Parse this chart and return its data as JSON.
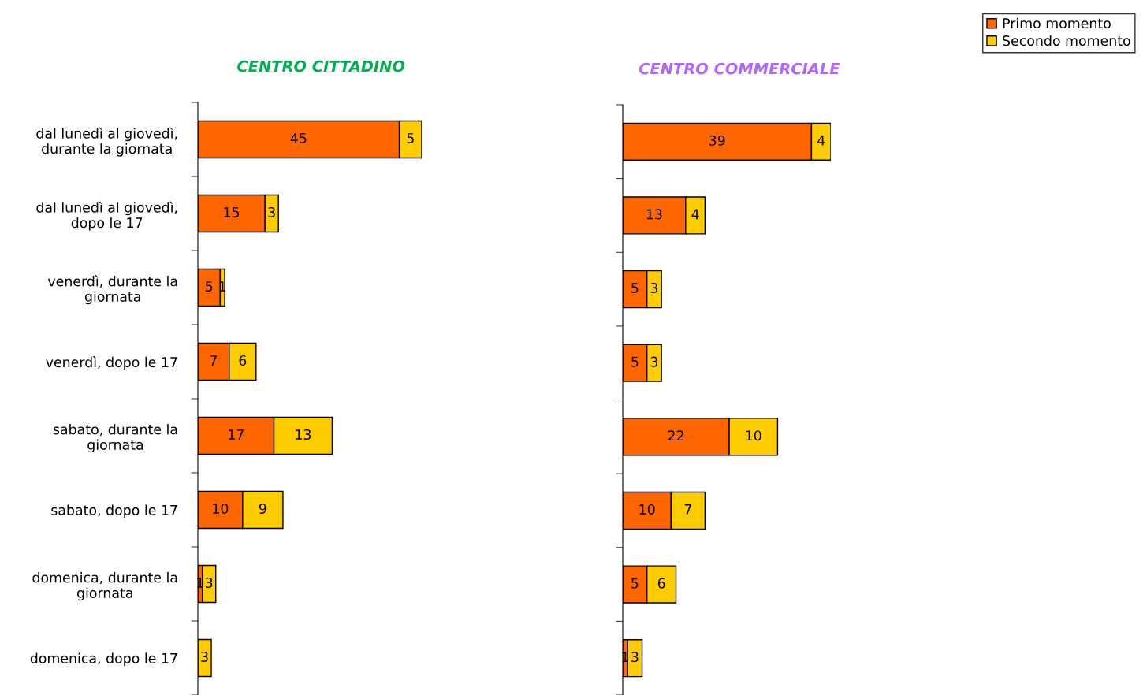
{
  "chart_data": [
    {
      "type": "bar",
      "orientation": "horizontal",
      "stacked": true,
      "title": "CENTRO CITTADINO",
      "categories": [
        "dal lunedì al giovedì, durante la giornata",
        "dal lunedì al giovedì, dopo le 17",
        "venerdì, durante la giornata",
        "venerdì, dopo le 17",
        "sabato, durante la giornata",
        "sabato, dopo le 17",
        "domenica, durante la giornata",
        "domenica, dopo le 17"
      ],
      "tick_labels": "y",
      "data_labels": true,
      "legend": "top right",
      "series": [
        {
          "name": "Primo momento",
          "color": "#ff6600",
          "values": [
            45,
            15,
            5,
            7,
            17,
            10,
            1,
            null
          ]
        },
        {
          "name": "Secondo momento",
          "color": "#ffcc00",
          "values": [
            5,
            3,
            1,
            6,
            13,
            9,
            3,
            3
          ]
        }
      ]
    },
    {
      "type": "bar",
      "orientation": "horizontal",
      "stacked": true,
      "title": "CENTRO COMMERCIALE",
      "categories": [
        null,
        null,
        null,
        null,
        null,
        null,
        null,
        null
      ],
      "data_labels": true,
      "series": [
        {
          "color": "#ff6600",
          "values": [
            39,
            13,
            5,
            5,
            22,
            10,
            5,
            1
          ]
        },
        {
          "color": "#ffcc00",
          "values": [
            4,
            4,
            3,
            3,
            10,
            7,
            6,
            3
          ]
        }
      ]
    }
  ]
}
